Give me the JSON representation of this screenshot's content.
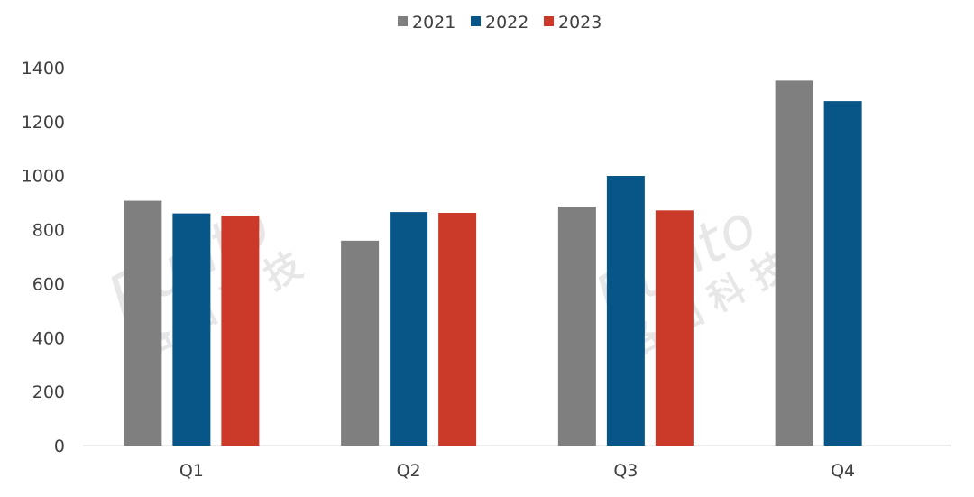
{
  "chart_data": {
    "type": "bar",
    "title": "",
    "xlabel": "",
    "ylabel": "",
    "categories": [
      "Q1",
      "Q2",
      "Q3",
      "Q4"
    ],
    "series": [
      {
        "name": "2021",
        "color": "#7f7f7f",
        "values": [
          907,
          759,
          885,
          1352
        ]
      },
      {
        "name": "2022",
        "color": "#085587",
        "values": [
          860,
          865,
          999,
          1276
        ]
      },
      {
        "name": "2023",
        "color": "#cb3a29",
        "values": [
          852,
          862,
          871,
          null
        ]
      }
    ],
    "ylim": [
      0,
      1400
    ],
    "yticks": [
      0,
      200,
      400,
      600,
      800,
      1000,
      1200,
      1400
    ],
    "grid": false,
    "legend": "top-center",
    "watermark": "Runto 洛图科技"
  }
}
